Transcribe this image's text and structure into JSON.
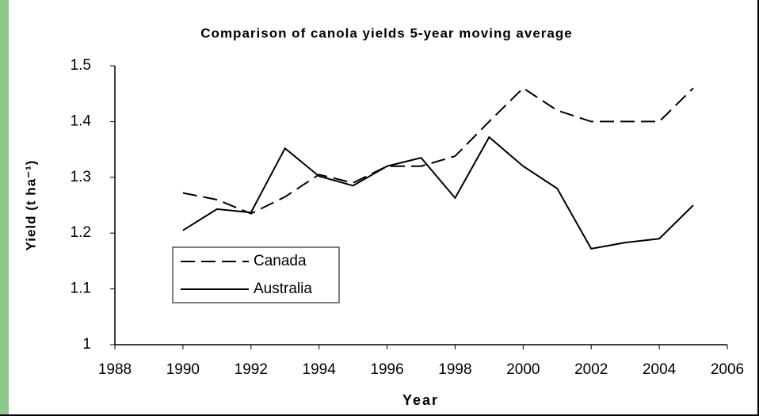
{
  "chart_data": {
    "type": "line",
    "title": "Comparison of canola yields 5-year moving average",
    "x_label": "Year",
    "y_label": "Yield (t ha⁻¹)",
    "x": [
      1990,
      1991,
      1992,
      1993,
      1994,
      1995,
      1996,
      1997,
      1998,
      1999,
      2000,
      2001,
      2002,
      2003,
      2004,
      2005
    ],
    "series": [
      {
        "name": "Canada",
        "color": "#000000",
        "dash": "dashed",
        "values": [
          1.272,
          1.26,
          1.235,
          1.265,
          1.305,
          1.29,
          1.32,
          1.32,
          1.338,
          1.4,
          1.46,
          1.42,
          1.4,
          1.4,
          1.4,
          1.46
        ]
      },
      {
        "name": "Australia",
        "color": "#000000",
        "dash": "solid",
        "values": [
          1.205,
          1.243,
          1.237,
          1.352,
          1.302,
          1.285,
          1.32,
          1.335,
          1.263,
          1.372,
          1.32,
          1.28,
          1.172,
          1.183,
          1.19,
          1.25
        ]
      }
    ],
    "xlim": [
      1988,
      2006
    ],
    "xticks": [
      1988,
      1990,
      1992,
      1994,
      1996,
      1998,
      2000,
      2002,
      2004,
      2006
    ],
    "ylim": [
      1,
      1.5
    ],
    "yticks": [
      1,
      1.1,
      1.2,
      1.3,
      1.4,
      1.5
    ],
    "grid": false,
    "legend": "lower left"
  }
}
